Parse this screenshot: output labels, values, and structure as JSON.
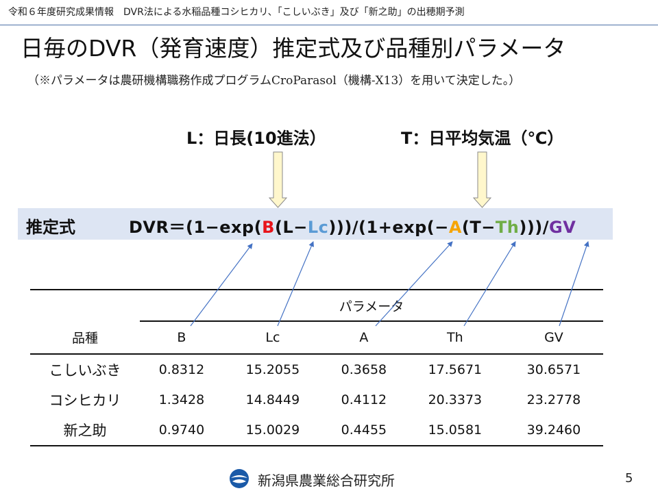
{
  "header": {
    "text": "令和６年度研究成果情報　DVR法による水稲品種コシヒカリ、「こしいぶき」及び「新之助」の出穂期予測"
  },
  "title": "日毎のDVR（発育速度）推定式及び品種別パラメータ",
  "subtitle": "（※パラメータは農研機構職務作成プログラムCroParasol（機構-X13）を用いて決定した。）",
  "labels": {
    "l": "L：日長(10進法）",
    "t": "T：日平均気温（℃）"
  },
  "formula": {
    "label": "推定式",
    "p1": "DVR＝(1−exp(",
    "B": "B",
    "p2": "(L−",
    "Lc": "Lc",
    "p3": ")))/(1+exp(−",
    "A": "A",
    "p4": "(T−",
    "Th": "Th",
    "p5": ")))/",
    "GV": "GV"
  },
  "table": {
    "group_header": "パラメータ",
    "columns": [
      "品種",
      "B",
      "Lc",
      "A",
      "Th",
      "GV"
    ],
    "rows": [
      [
        "こしいぶき",
        "0.8312",
        "15.2055",
        "0.3658",
        "17.5671",
        "30.6571"
      ],
      [
        "コシヒカリ",
        "1.3428",
        "14.8449",
        "0.4112",
        "20.3373",
        "23.2778"
      ],
      [
        "新之助",
        "0.9740",
        "15.0029",
        "0.4455",
        "15.0581",
        "39.2460"
      ]
    ]
  },
  "footer": {
    "org": "新潟県農業総合研究所",
    "page": "5"
  },
  "colors": {
    "B": "#e8141b",
    "Lc": "#5b9bd5",
    "A": "#f6a400",
    "Th": "#70ad47",
    "GV": "#7030a0",
    "formula_bg": "#dde5f3",
    "arrow_fill": "#fff7cc"
  }
}
